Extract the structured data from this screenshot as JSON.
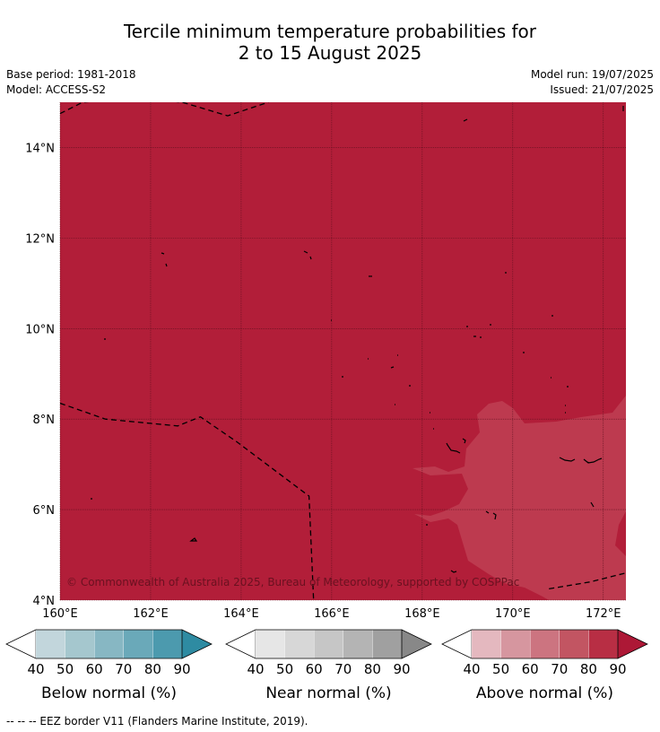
{
  "title": {
    "line1": "Tercile minimum temperature probabilities for",
    "line2": "2 to 15 August 2025"
  },
  "meta": {
    "base_period": "Base period: 1981-2018",
    "model": "Model: ACCESS-S2",
    "model_run": "Model run: 19/07/2025",
    "issued": "Issued: 21/07/2025"
  },
  "map": {
    "lon_range": [
      160,
      172.5
    ],
    "lat_range": [
      4,
      15
    ],
    "lon_ticks": [
      160,
      162,
      164,
      166,
      168,
      170,
      172
    ],
    "lon_tick_labels": [
      "160°E",
      "162°E",
      "164°E",
      "166°E",
      "168°E",
      "170°E",
      "172°E"
    ],
    "lat_ticks": [
      4,
      6,
      8,
      10,
      12,
      14
    ],
    "lat_tick_labels": [
      "4°N",
      "6°N",
      "8°N",
      "10°N",
      "12°N",
      "14°N"
    ],
    "background_category": "Above normal",
    "background_color": "#b21e39",
    "patch_color": "#bd3a4f",
    "copyright": "© Commonwealth of Australia 2025, Bureau of Meteorology, supported by COSPPac",
    "eez_borders": [
      [
        [
          160,
          14.75
        ],
        [
          160.5,
          15.0
        ],
        [
          161.6,
          15.1
        ],
        [
          162.7,
          15.0
        ],
        [
          163.7,
          14.7
        ],
        [
          164.6,
          15.0
        ]
      ],
      [
        [
          160,
          8.35
        ],
        [
          161,
          8.0
        ],
        [
          162.6,
          7.85
        ],
        [
          163.1,
          8.05
        ],
        [
          163.9,
          7.5
        ],
        [
          165.5,
          6.3
        ],
        [
          165.6,
          4.0
        ]
      ],
      [
        [
          170.8,
          4.25
        ],
        [
          171.7,
          4.4
        ],
        [
          172.5,
          4.6
        ]
      ]
    ]
  },
  "colorbars": [
    {
      "label": "Below normal (%)",
      "ticks": [
        "40",
        "50",
        "60",
        "70",
        "80",
        "90"
      ],
      "colors": [
        "#c2d6dc",
        "#a5c7ce",
        "#87b7c3",
        "#6aa9b9",
        "#4c9aae",
        "#2e8ba2"
      ]
    },
    {
      "label": "Near normal (%)",
      "ticks": [
        "40",
        "50",
        "60",
        "70",
        "80",
        "90"
      ],
      "colors": [
        "#e6e6e6",
        "#d7d7d7",
        "#c6c6c6",
        "#b4b4b4",
        "#a0a0a0",
        "#888888"
      ]
    },
    {
      "label": "Above normal (%)",
      "ticks": [
        "40",
        "50",
        "60",
        "70",
        "80",
        "90"
      ],
      "colors": [
        "#e4b8bf",
        "#d6969f",
        "#cc7480",
        "#c25562",
        "#b82e44",
        "#ad1836"
      ]
    }
  ],
  "footnote": "--  --  -- EEZ border V11 (Flanders Marine Institute, 2019)."
}
